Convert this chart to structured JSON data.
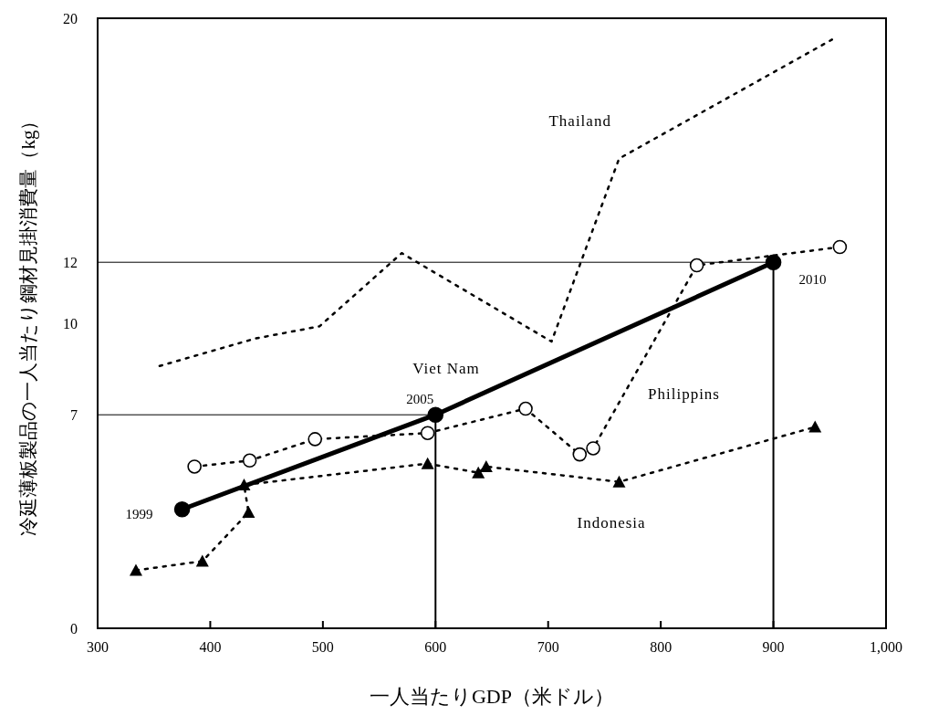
{
  "chart_data": {
    "type": "line",
    "xlabel": "一人当たりGDP（米ドル）",
    "ylabel": "冷延薄板製品の一人当たり鋼材見掛消費量（kg）",
    "xlim": [
      300,
      1000
    ],
    "ylim": [
      0,
      20
    ],
    "xticks": [
      300,
      400,
      500,
      600,
      700,
      800,
      900,
      {
        "value": 1000,
        "label": "1,000"
      }
    ],
    "yticks": [
      0,
      7,
      10,
      12,
      20
    ],
    "grid": false,
    "series": [
      {
        "name": "Thailand",
        "color": "#000000",
        "marker": "none",
        "line_style": "dotted",
        "x": [
          355,
          440,
          497,
          570,
          703,
          763,
          952
        ],
        "values": [
          8.6,
          9.5,
          9.9,
          12.3,
          9.4,
          15.4,
          19.3
        ]
      },
      {
        "name": "Viet Nam",
        "color": "#000000",
        "marker": "circle",
        "line_style": "solid",
        "x": [
          375,
          600,
          900
        ],
        "values": [
          3.9,
          7,
          12
        ]
      },
      {
        "name": "Philippins",
        "color": "#000000",
        "marker": "circle",
        "line_style": "dotted",
        "x": [
          386,
          435,
          493,
          593,
          680,
          728,
          740,
          832,
          959
        ],
        "values": [
          5.3,
          5.5,
          6.2,
          6.4,
          7.2,
          5.7,
          5.9,
          11.9,
          12.5
        ]
      },
      {
        "name": "Indonesia",
        "color": "#000000",
        "marker": "triangle",
        "line_style": "dotted",
        "x": [
          334,
          393,
          434,
          430,
          593,
          638,
          645,
          763,
          937
        ],
        "values": [
          1.9,
          2.2,
          3.8,
          4.7,
          5.4,
          5.1,
          5.3,
          4.8,
          6.6
        ]
      }
    ],
    "ref_lines": [
      {
        "axis": "y",
        "value": 7
      },
      {
        "axis": "x",
        "value": 600
      },
      {
        "axis": "y",
        "value": 12
      },
      {
        "axis": "x",
        "value": 900
      }
    ],
    "annotations": [
      {
        "text": "1999",
        "x": 375,
        "y": 3.9
      },
      {
        "text": "2005",
        "x": 600,
        "y": 7
      },
      {
        "text": "2010",
        "x": 900,
        "y": 12
      }
    ]
  }
}
